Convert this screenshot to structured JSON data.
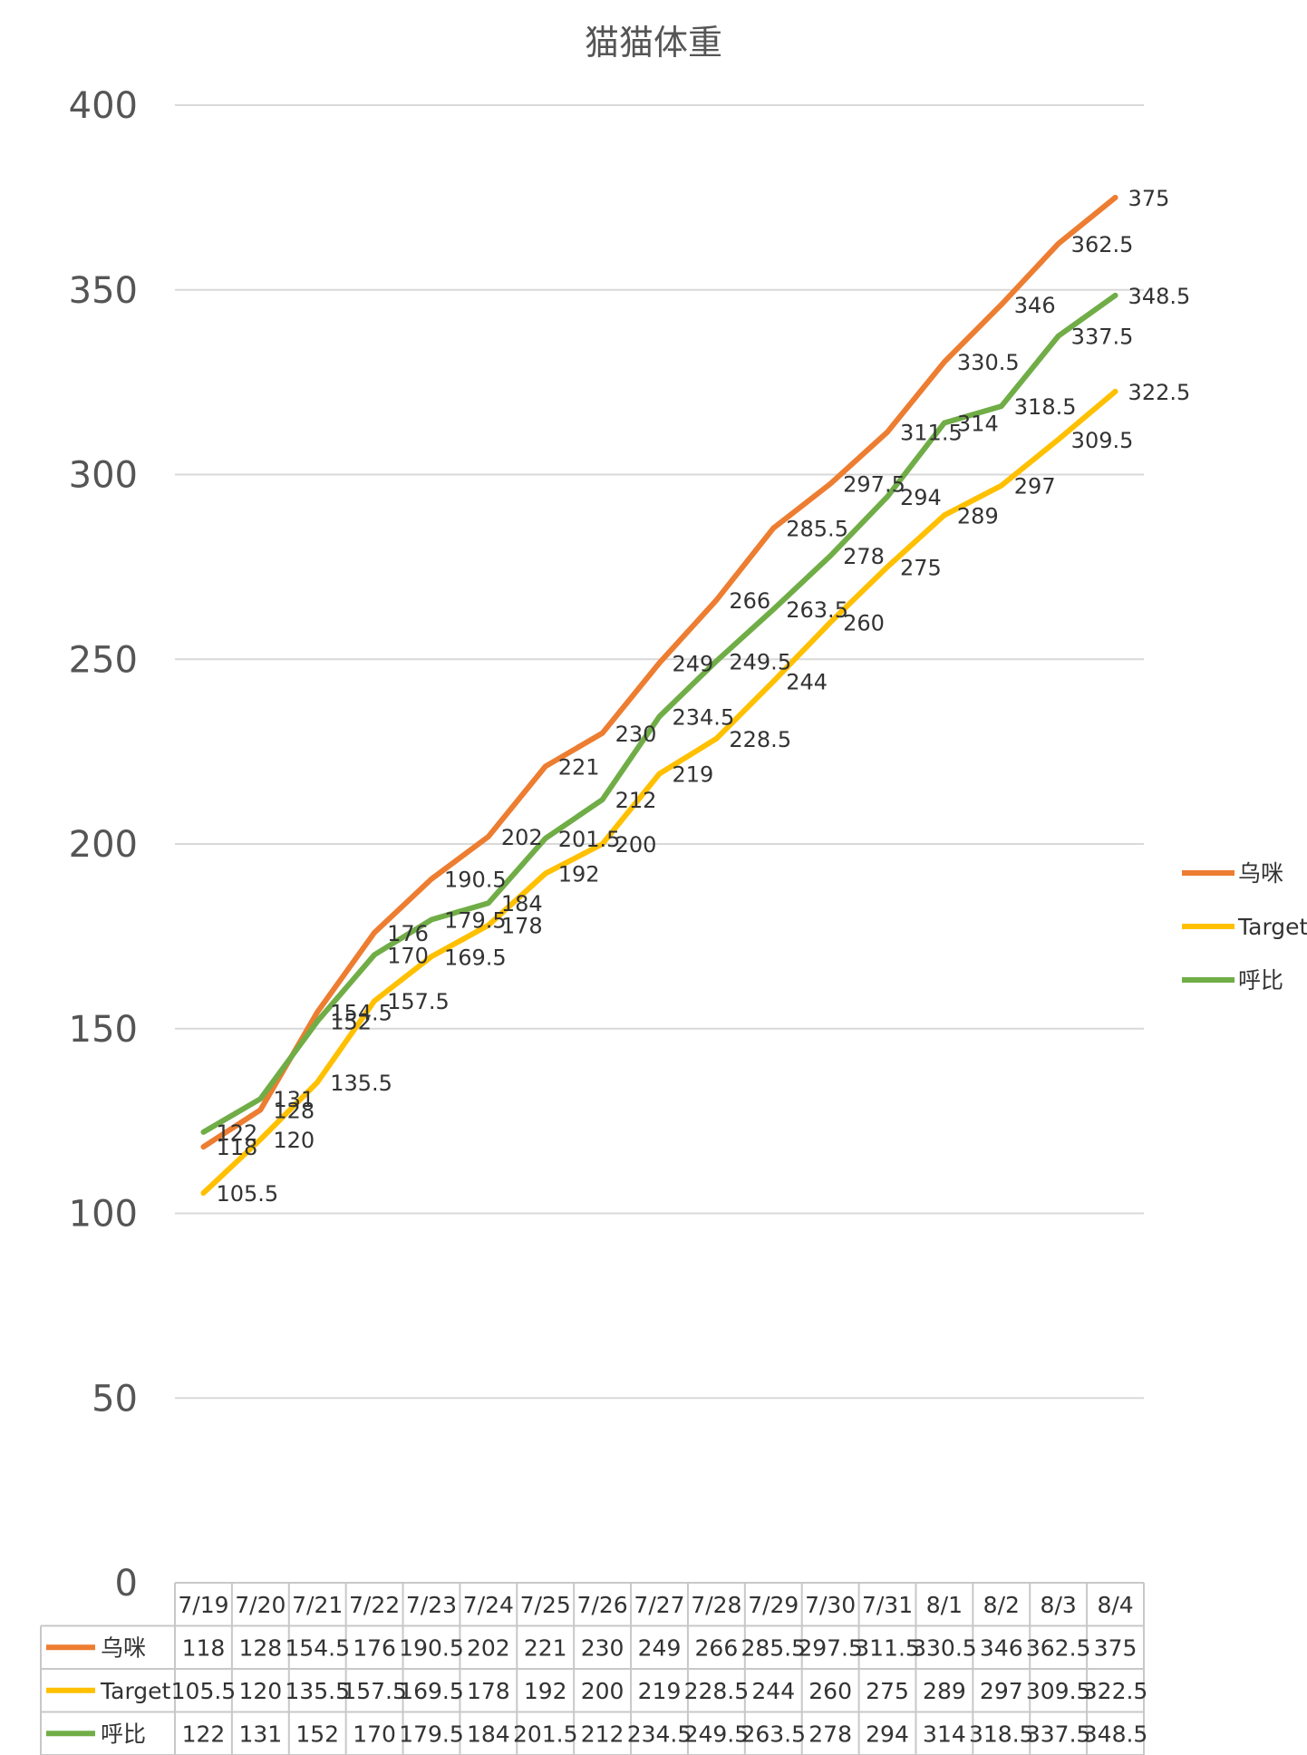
{
  "chart_data": {
    "type": "line",
    "title": "猫猫体重",
    "categories": [
      "7/19",
      "7/20",
      "7/21",
      "7/22",
      "7/23",
      "7/24",
      "7/25",
      "7/26",
      "7/27",
      "7/28",
      "7/29",
      "7/30",
      "7/31",
      "8/1",
      "8/2",
      "8/3",
      "8/4"
    ],
    "series": [
      {
        "name": "乌咪",
        "color": "#ED7D31",
        "values": [
          118,
          128,
          154.5,
          176,
          190.5,
          202,
          221,
          230,
          249,
          266,
          285.5,
          297.5,
          311.5,
          330.5,
          346,
          362.5,
          375
        ]
      },
      {
        "name": "Target",
        "color": "#FFC000",
        "values": [
          105.5,
          120,
          135.5,
          157.5,
          169.5,
          178,
          192,
          200,
          219,
          228.5,
          244,
          260,
          275,
          289,
          297,
          309.5,
          322.5
        ]
      },
      {
        "name": "呼比",
        "color": "#70AD47",
        "values": [
          122,
          131,
          152,
          170,
          179.5,
          184,
          201.5,
          212,
          234.5,
          249.5,
          263.5,
          278,
          294,
          314,
          318.5,
          337.5,
          348.5
        ]
      }
    ],
    "ylim": [
      0,
      400
    ],
    "yticks": [
      0,
      50,
      100,
      150,
      200,
      250,
      300,
      350,
      400
    ],
    "grid": true,
    "legend_position": "right",
    "data_table": true
  }
}
